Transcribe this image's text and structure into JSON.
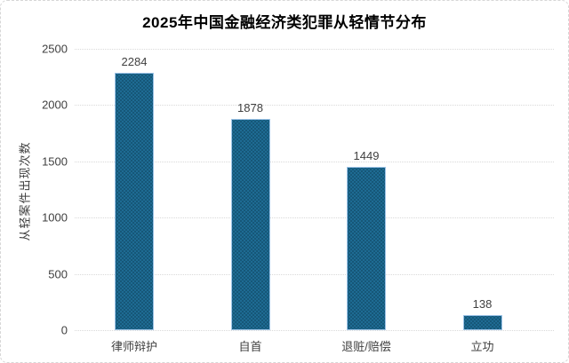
{
  "chart_data": {
    "type": "bar",
    "title": "2025年中国金融经济类犯罪从轻情节分布",
    "categories": [
      "律师辩护",
      "自首",
      "退赃/赔偿",
      "立功"
    ],
    "values": [
      2284,
      1878,
      1449,
      138
    ],
    "data_labels": [
      "2284",
      "1878",
      "1449",
      "138"
    ],
    "xlabel": "",
    "ylabel": "从轻案件出现次数",
    "ylim": [
      0,
      2500
    ],
    "yticks": [
      0,
      500,
      1000,
      1500,
      2000,
      2500
    ],
    "grid": "horizontal dotted gridlines",
    "legend": "none",
    "colors": {
      "bar_fill": "#1e6b93",
      "bar_pattern_dot": "#14506f",
      "bar_border": "#9dc3e6",
      "grid_line": "#d9d9d9",
      "tick_text": "#404040",
      "title_text": "#000000"
    }
  }
}
